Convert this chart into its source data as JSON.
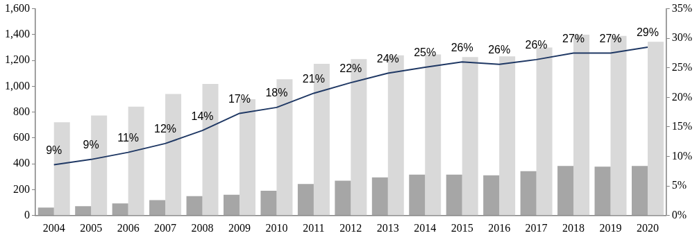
{
  "chart_data": {
    "type": "bar",
    "categories": [
      "2004",
      "2005",
      "2006",
      "2007",
      "2008",
      "2009",
      "2010",
      "2011",
      "2012",
      "2013",
      "2014",
      "2015",
      "2016",
      "2017",
      "2018",
      "2019",
      "2020"
    ],
    "series": [
      {
        "color": "#a6a6a6",
        "values": [
          62,
          73,
          94,
          120,
          151,
          161,
          192,
          244,
          270,
          296,
          317,
          317,
          312,
          343,
          384,
          379,
          384
        ]
      },
      {
        "color": "#d9d9d9",
        "values": [
          722,
          774,
          842,
          940,
          1018,
          900,
          1055,
          1174,
          1210,
          1240,
          1247,
          1226,
          1231,
          1300,
          1400,
          1390,
          1345
        ]
      },
      {
        "type": "line",
        "axis": "y2",
        "color": "#1f3864",
        "marker": "none",
        "values": [
          8.6,
          9.5,
          10.7,
          12.2,
          14.4,
          17.3,
          18.3,
          20.7,
          22.5,
          24.1,
          25.1,
          26.0,
          25.6,
          26.4,
          27.5,
          27.5,
          28.5
        ],
        "value_labels": [
          "9%",
          "9%",
          "11%",
          "12%",
          "14%",
          "17%",
          "18%",
          "21%",
          "22%",
          "24%",
          "25%",
          "26%",
          "26%",
          "26%",
          "27%",
          "27%",
          "29%"
        ]
      }
    ],
    "ylim": [
      0,
      1600
    ],
    "yticks": [
      {
        "value": 0,
        "label": "0"
      },
      {
        "value": 200,
        "label": "200"
      },
      {
        "value": 400,
        "label": "400"
      },
      {
        "value": 600,
        "label": "600"
      },
      {
        "value": 800,
        "label": "800"
      },
      {
        "value": 1000,
        "label": "1,000"
      },
      {
        "value": 1200,
        "label": "1,200"
      },
      {
        "value": 1400,
        "label": "1,400"
      },
      {
        "value": 1600,
        "label": "1,600"
      }
    ],
    "y2lim": [
      0,
      35
    ],
    "y2ticks": [
      {
        "value": 0,
        "label": "0%"
      },
      {
        "value": 5,
        "label": "5%"
      },
      {
        "value": 10,
        "label": "10%"
      },
      {
        "value": 15,
        "label": "15%"
      },
      {
        "value": 20,
        "label": "20%"
      },
      {
        "value": 25,
        "label": "25%"
      },
      {
        "value": 30,
        "label": "30%"
      },
      {
        "value": 35,
        "label": "35%"
      }
    ],
    "grid": false,
    "legend": false
  }
}
